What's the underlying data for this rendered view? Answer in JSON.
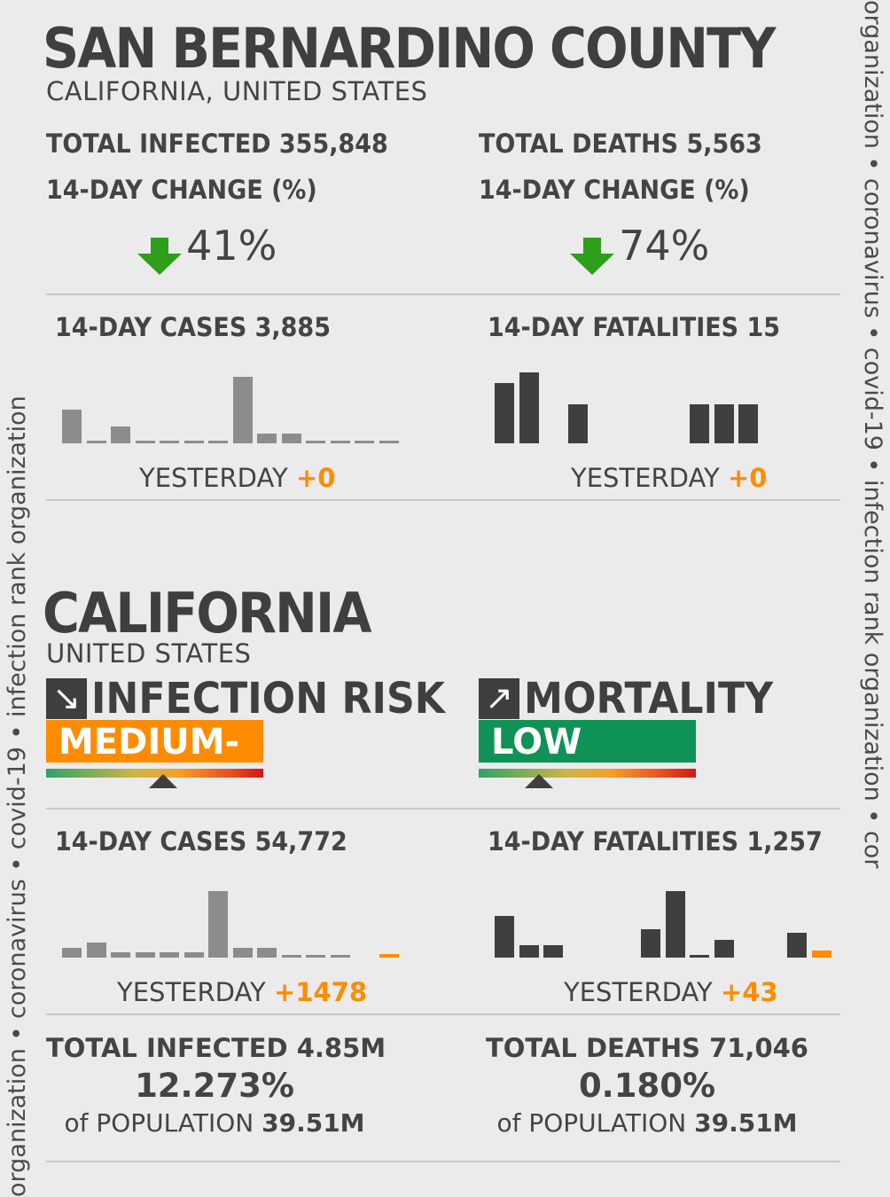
{
  "side_text_left": "organization • coronavirus • covid-19 • infection rank organization",
  "side_text_right": "organization • coronavirus • covid-19 • infection rank organization • cor",
  "county": {
    "title": "SAN BERNARDINO COUNTY",
    "subtitle": "CALIFORNIA, UNITED STATES",
    "infected_label": "TOTAL INFECTED 355,848",
    "deaths_label": "TOTAL DEATHS 5,563",
    "change_label_left": "14-DAY CHANGE (%)",
    "change_label_right": "14-DAY CHANGE (%)",
    "change_infected": "41%",
    "change_deaths": "74%",
    "cases_label": "14-DAY CASES 3,885",
    "fatalities_label": "14-DAY FATALITIES 15",
    "yesterday_label_cases": "YESTERDAY",
    "yesterday_cases": "+0",
    "yesterday_label_fat": "YESTERDAY",
    "yesterday_fat": "+0"
  },
  "state": {
    "title": "CALIFORNIA",
    "subtitle": "UNITED STATES",
    "infection_risk_label": "INFECTION RISK",
    "infection_risk_value": "MEDIUM-",
    "infection_risk_arrow": "↘",
    "mortality_label": "MORTALITY",
    "mortality_value": "LOW",
    "mortality_arrow": "↗",
    "cases_label": "14-DAY CASES 54,772",
    "fatalities_label": "14-DAY FATALITIES 1,257",
    "yesterday_label_cases": "YESTERDAY",
    "yesterday_cases": "+1478",
    "yesterday_label_fat": "YESTERDAY",
    "yesterday_fat": "+43",
    "total_infected_label": "TOTAL INFECTED 4.85M",
    "total_infected_pct": "12.273%",
    "total_deaths_label": "TOTAL DEATHS 71,046",
    "total_deaths_pct": "0.180%",
    "pop_prefix_left": "of POPULATION",
    "pop_value_left": "39.51M",
    "pop_prefix_right": "of POPULATION",
    "pop_value_right": "39.51M"
  },
  "colors": {
    "accent_orange": "#ff8c00",
    "risk_medium": "#ff8c00",
    "risk_low": "#0e9255",
    "arrow_green": "#2e9e1b",
    "bar_gray": "#8c8c8c",
    "bar_dark": "#3f3f3f"
  },
  "sparklines": {
    "county_cases": [
      0.5,
      0.03,
      0.25,
      0.03,
      0.03,
      0.03,
      0.03,
      1.0,
      0.15,
      0.15,
      0.03,
      0.03,
      0.03,
      0.03
    ],
    "county_fatalities": [
      0.85,
      1.0,
      0,
      0.55,
      0,
      0,
      0,
      0,
      0.55,
      0.55,
      0.55,
      0,
      0,
      0
    ],
    "state_cases": [
      0.15,
      0.22,
      0.08,
      0.08,
      0.08,
      0.08,
      1.0,
      0.15,
      0.15,
      0.03,
      0.03,
      0.03,
      0,
      0.05
    ],
    "state_fatalities": [
      0.62,
      0.18,
      0.18,
      0,
      0,
      0,
      0.42,
      1.0,
      0.03,
      0.27,
      0,
      0,
      0.37,
      0.1
    ]
  }
}
